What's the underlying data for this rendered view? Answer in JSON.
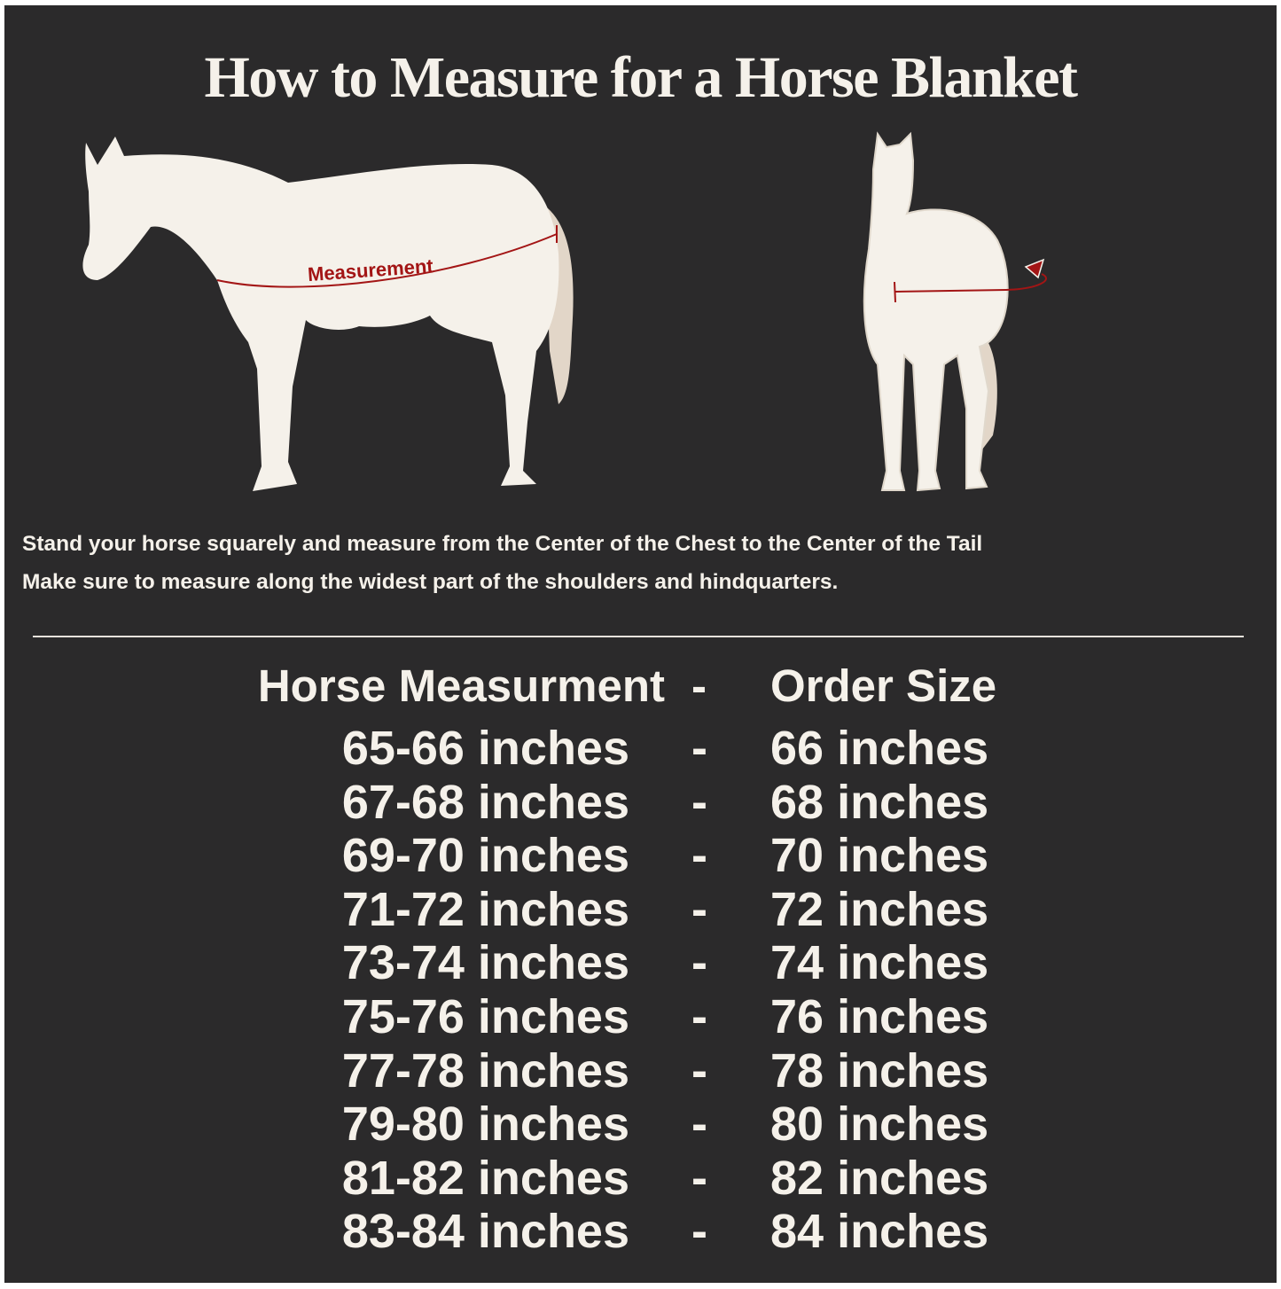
{
  "title": "How to Measure for a Horse Blanket",
  "illustration": {
    "side_view_label": "Measurement",
    "accent_color": "#a31515",
    "horse_color": "#f5f1ea"
  },
  "instructions": [
    "Stand your horse squarely and measure from the Center of the Chest to the Center of the Tail",
    "Make sure to measure along the widest part of the shoulders and hindquarters."
  ],
  "table": {
    "headers": {
      "measurement": "Horse Measurment",
      "separator": "-",
      "size": "Order Size"
    },
    "rows": [
      {
        "measurement": "65-66 inches",
        "separator": "-",
        "size": "66 inches"
      },
      {
        "measurement": "67-68 inches",
        "separator": "-",
        "size": "68 inches"
      },
      {
        "measurement": "69-70 inches",
        "separator": "-",
        "size": "70 inches"
      },
      {
        "measurement": "71-72 inches",
        "separator": "-",
        "size": "72 inches"
      },
      {
        "measurement": "73-74 inches",
        "separator": "-",
        "size": "74 inches"
      },
      {
        "measurement": "75-76 inches",
        "separator": "-",
        "size": "76 inches"
      },
      {
        "measurement": "77-78 inches",
        "separator": "-",
        "size": "78 inches"
      },
      {
        "measurement": "79-80 inches",
        "separator": "-",
        "size": "80 inches"
      },
      {
        "measurement": "81-82 inches",
        "separator": "-",
        "size": "82 inches"
      },
      {
        "measurement": "83-84 inches",
        "separator": "-",
        "size": "84 inches"
      }
    ]
  }
}
